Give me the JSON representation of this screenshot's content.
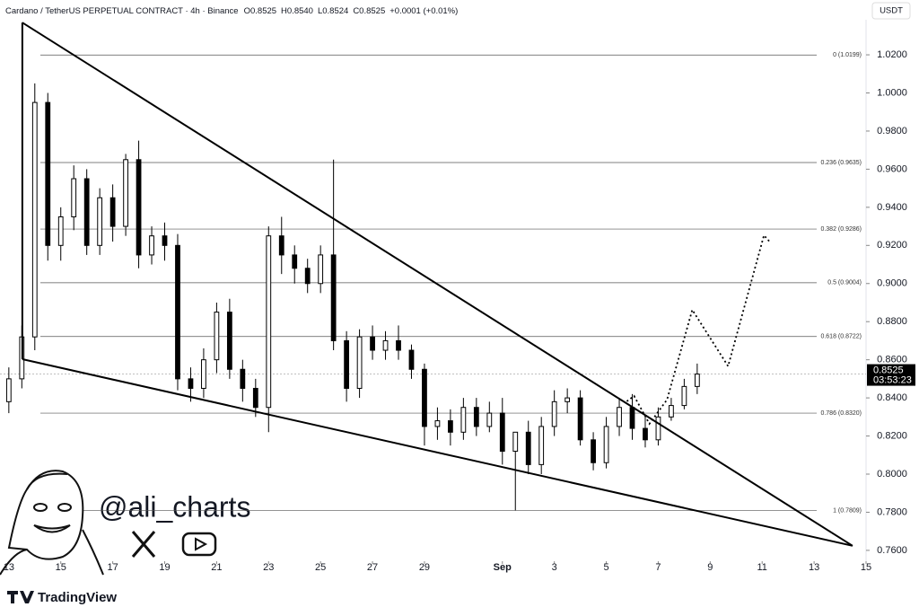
{
  "chart_data": {
    "type": "candlestick",
    "header": {
      "symbol": "Cardano / TetherUS PERPETUAL CONTRACT · 4h · Binance",
      "open": "O0.8525",
      "high": "H0.8540",
      "low": "L0.8524",
      "close": "C0.8525",
      "change": "+0.0001 (+0.01%)"
    },
    "currency": "USDT",
    "x": [
      0,
      0.5,
      1,
      1.5,
      2,
      2.5,
      3,
      3.5,
      4,
      4.5,
      5,
      5.5,
      6,
      6.5,
      7,
      7.5,
      8,
      8.5,
      9,
      9.5,
      10,
      10.5,
      11,
      11.5,
      12,
      12.5,
      13,
      13.5,
      14,
      14.5,
      15,
      15.5,
      16,
      16.5,
      17,
      17.5,
      18,
      18.5,
      19,
      19.5,
      20,
      20.5,
      21,
      21.5,
      22,
      22.5,
      23,
      23.5,
      24,
      24.5,
      25,
      25.5,
      26,
      26.5
    ],
    "open": [
      0.838,
      0.85,
      0.872,
      0.995,
      0.92,
      0.935,
      0.955,
      0.92,
      0.945,
      0.93,
      0.965,
      0.915,
      0.925,
      0.92,
      0.85,
      0.845,
      0.86,
      0.885,
      0.855,
      0.845,
      0.835,
      0.925,
      0.915,
      0.908,
      0.9,
      0.915,
      0.87,
      0.845,
      0.872,
      0.865,
      0.87,
      0.865,
      0.855,
      0.825,
      0.828,
      0.822,
      0.835,
      0.825,
      0.832,
      0.812,
      0.822,
      0.805,
      0.825,
      0.838,
      0.84,
      0.818,
      0.806,
      0.825,
      0.835,
      0.824,
      0.818,
      0.83,
      0.836,
      0.846
    ],
    "high": [
      0.856,
      0.878,
      1.005,
      1.0,
      0.94,
      0.962,
      0.96,
      0.95,
      0.952,
      0.968,
      0.975,
      0.93,
      0.932,
      0.926,
      0.856,
      0.866,
      0.89,
      0.892,
      0.86,
      0.85,
      0.93,
      0.935,
      0.92,
      0.913,
      0.92,
      0.965,
      0.875,
      0.876,
      0.878,
      0.875,
      0.878,
      0.868,
      0.858,
      0.835,
      0.834,
      0.84,
      0.84,
      0.838,
      0.84,
      0.822,
      0.828,
      0.83,
      0.844,
      0.845,
      0.844,
      0.822,
      0.83,
      0.84,
      0.842,
      0.83,
      0.835,
      0.84,
      0.85,
      0.858
    ],
    "low": [
      0.832,
      0.845,
      0.865,
      0.912,
      0.912,
      0.928,
      0.915,
      0.915,
      0.922,
      0.925,
      0.908,
      0.91,
      0.912,
      0.844,
      0.838,
      0.84,
      0.853,
      0.85,
      0.838,
      0.83,
      0.822,
      0.905,
      0.9,
      0.895,
      0.895,
      0.865,
      0.838,
      0.84,
      0.86,
      0.86,
      0.86,
      0.85,
      0.815,
      0.818,
      0.815,
      0.818,
      0.82,
      0.822,
      0.805,
      0.781,
      0.8,
      0.8,
      0.82,
      0.832,
      0.815,
      0.802,
      0.803,
      0.82,
      0.818,
      0.814,
      0.815,
      0.828,
      0.834,
      0.842
    ],
    "close": [
      0.85,
      0.872,
      0.995,
      0.92,
      0.935,
      0.955,
      0.92,
      0.945,
      0.93,
      0.965,
      0.915,
      0.925,
      0.92,
      0.85,
      0.845,
      0.86,
      0.885,
      0.855,
      0.845,
      0.835,
      0.925,
      0.915,
      0.908,
      0.9,
      0.915,
      0.87,
      0.845,
      0.872,
      0.865,
      0.87,
      0.865,
      0.855,
      0.825,
      0.828,
      0.822,
      0.835,
      0.825,
      0.832,
      0.812,
      0.822,
      0.805,
      0.825,
      0.838,
      0.84,
      0.818,
      0.806,
      0.825,
      0.835,
      0.824,
      0.818,
      0.83,
      0.836,
      0.846,
      0.8525
    ],
    "up_color": "#ffffff",
    "down_color": "#000000",
    "xlim": [
      -0.34,
      33
    ],
    "xticks": [
      {
        "value": 0,
        "label": "13"
      },
      {
        "value": 2,
        "label": "15"
      },
      {
        "value": 4,
        "label": "17"
      },
      {
        "value": 6,
        "label": "19"
      },
      {
        "value": 8,
        "label": "21"
      },
      {
        "value": 10,
        "label": "23"
      },
      {
        "value": 12,
        "label": "25"
      },
      {
        "value": 14,
        "label": "27"
      },
      {
        "value": 16,
        "label": "29"
      },
      {
        "value": 19,
        "label": "Sep"
      },
      {
        "value": 21,
        "label": "3"
      },
      {
        "value": 23,
        "label": "5"
      },
      {
        "value": 25,
        "label": "7"
      },
      {
        "value": 27,
        "label": "9"
      },
      {
        "value": 29,
        "label": "11"
      },
      {
        "value": 31,
        "label": "13"
      },
      {
        "value": 33,
        "label": "15"
      }
    ],
    "ylim": [
      0.7543,
      1.0384
    ],
    "yticks": [
      {
        "value": 0.76,
        "label": "0.7600"
      },
      {
        "value": 0.78,
        "label": "0.7800"
      },
      {
        "value": 0.8,
        "label": "0.8000"
      },
      {
        "value": 0.82,
        "label": "0.8200"
      },
      {
        "value": 0.84,
        "label": "0.8400"
      },
      {
        "value": 0.86,
        "label": "0.8600"
      },
      {
        "value": 0.88,
        "label": "0.8800"
      },
      {
        "value": 0.9,
        "label": "0.9000"
      },
      {
        "value": 0.92,
        "label": "0.9200"
      },
      {
        "value": 0.94,
        "label": "0.9400"
      },
      {
        "value": 0.96,
        "label": "0.9600"
      },
      {
        "value": 0.98,
        "label": "0.9800"
      },
      {
        "value": 1.0,
        "label": "1.0000"
      },
      {
        "value": 1.02,
        "label": "1.0200"
      }
    ],
    "fib_levels": [
      {
        "value": 1.0199,
        "label": "0 (1.0199)"
      },
      {
        "value": 0.9635,
        "label": "0.236 (0.9635)"
      },
      {
        "value": 0.9286,
        "label": "0.382 (0.9286)"
      },
      {
        "value": 0.9004,
        "label": "0.5 (0.9004)"
      },
      {
        "value": 0.8722,
        "label": "0.618 (0.8722)"
      },
      {
        "value": 0.832,
        "label": "0.786 (0.8320)"
      },
      {
        "value": 0.7809,
        "label": "1 (0.7809)"
      }
    ],
    "trendlines": [
      [
        [
          0.52,
          1.0369
        ],
        [
          32.48,
          0.7624
        ]
      ],
      [
        [
          0.52,
          0.8603
        ],
        [
          32.48,
          0.7624
        ]
      ],
      [
        [
          0.52,
          1.0369
        ],
        [
          0.52,
          0.8603
        ]
      ]
    ],
    "projection": {
      "x": [
        23.79,
        24.07,
        24.66,
        25.34,
        26.31,
        27.69,
        29.07,
        29.31
      ],
      "y": [
        0.8382,
        0.841,
        0.8264,
        0.8391,
        0.8862,
        0.8566,
        0.9253,
        0.9216
      ]
    },
    "last_price": 0.8525,
    "countdown": "03:53:23",
    "watermark": "@ali_charts",
    "brand": "TradingView"
  }
}
